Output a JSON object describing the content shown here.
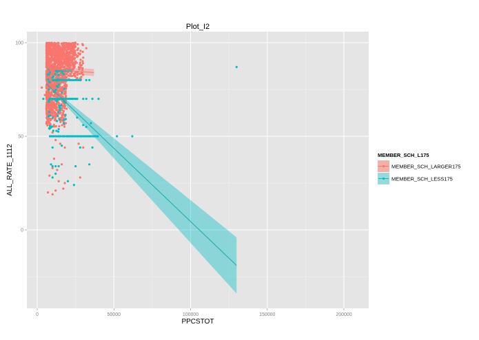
{
  "chart_data": {
    "type": "scatter",
    "title": "Plot_I2",
    "xlabel": "PPCSTOT",
    "ylabel": "ALL_RATE_1112",
    "xlim": [
      -7000,
      216000
    ],
    "ylim": [
      -42,
      106
    ],
    "x_ticks": [
      0,
      50000,
      100000,
      150000,
      200000
    ],
    "x_tick_labels": [
      "0",
      "50000",
      "100000",
      "150000",
      "200000"
    ],
    "y_ticks": [
      0,
      50,
      100
    ],
    "y_tick_labels": [
      "0",
      "50",
      "100"
    ],
    "grid": true,
    "legend": {
      "title": "MEMBER_SCH_L175",
      "position": "right",
      "entries": [
        {
          "label": "MEMBER_SCH_LARGER175",
          "color": "#F8766D"
        },
        {
          "label": "MEMBER_SCH_LESS175",
          "color": "#00BFC4"
        }
      ]
    },
    "series": [
      {
        "name": "MEMBER_SCH_LARGER175",
        "color": "#F8766D",
        "dense_region": {
          "x_range": [
            6000,
            25000
          ],
          "y_range": [
            55,
            100
          ]
        },
        "sparse_points": [
          [
            3000,
            76
          ],
          [
            5000,
            72
          ],
          [
            28000,
            94
          ],
          [
            30000,
            92
          ],
          [
            32000,
            97
          ],
          [
            25000,
            84
          ],
          [
            8000,
            54
          ],
          [
            10000,
            52
          ],
          [
            12000,
            48
          ],
          [
            15000,
            46
          ],
          [
            18000,
            44
          ],
          [
            20000,
            50
          ],
          [
            27000,
            46
          ],
          [
            30000,
            44
          ],
          [
            11000,
            38
          ],
          [
            16000,
            35
          ],
          [
            10000,
            33
          ],
          [
            13000,
            32
          ],
          [
            12000,
            30
          ],
          [
            8000,
            29
          ],
          [
            14000,
            26
          ],
          [
            18000,
            25
          ],
          [
            7000,
            20
          ],
          [
            10000,
            19
          ],
          [
            12000,
            21
          ],
          [
            17000,
            22
          ],
          [
            28000,
            28
          ]
        ],
        "fit": {
          "x": [
            6000,
            37000
          ],
          "y": [
            86,
            84
          ],
          "ci_halfwidth": 1.2
        }
      },
      {
        "name": "MEMBER_SCH_LESS175",
        "color": "#00BFC4",
        "bands": [
          {
            "y": 50,
            "x_range": [
              8000,
              40000
            ]
          },
          {
            "y": 70,
            "x_range": [
              8000,
              26000
            ]
          },
          {
            "y": 80,
            "x_range": [
              10000,
              28000
            ]
          },
          {
            "y": 85,
            "x_range": [
              12000,
              22000
            ]
          }
        ],
        "sparse_points": [
          [
            4000,
            70
          ],
          [
            30000,
            70
          ],
          [
            32000,
            70
          ],
          [
            36000,
            70
          ],
          [
            40000,
            70
          ],
          [
            28000,
            80
          ],
          [
            32000,
            80
          ],
          [
            34000,
            80
          ],
          [
            52000,
            50
          ],
          [
            62000,
            50
          ],
          [
            35000,
            57
          ],
          [
            32000,
            55
          ],
          [
            26000,
            60
          ],
          [
            10000,
            44
          ],
          [
            16000,
            45
          ],
          [
            28000,
            44
          ],
          [
            36000,
            44
          ],
          [
            30000,
            56
          ],
          [
            9000,
            35
          ],
          [
            10000,
            34
          ],
          [
            12000,
            34
          ],
          [
            14000,
            34
          ],
          [
            25000,
            34
          ],
          [
            34000,
            35
          ],
          [
            12000,
            30
          ],
          [
            10000,
            28
          ],
          [
            20000,
            26
          ],
          [
            24000,
            24
          ],
          [
            130000,
            87
          ]
        ],
        "fit": {
          "x": [
            6000,
            130000
          ],
          "y": [
            78,
            -19
          ],
          "ci_lower_at_end": -34,
          "ci_upper_at_end": -4
        }
      }
    ]
  }
}
